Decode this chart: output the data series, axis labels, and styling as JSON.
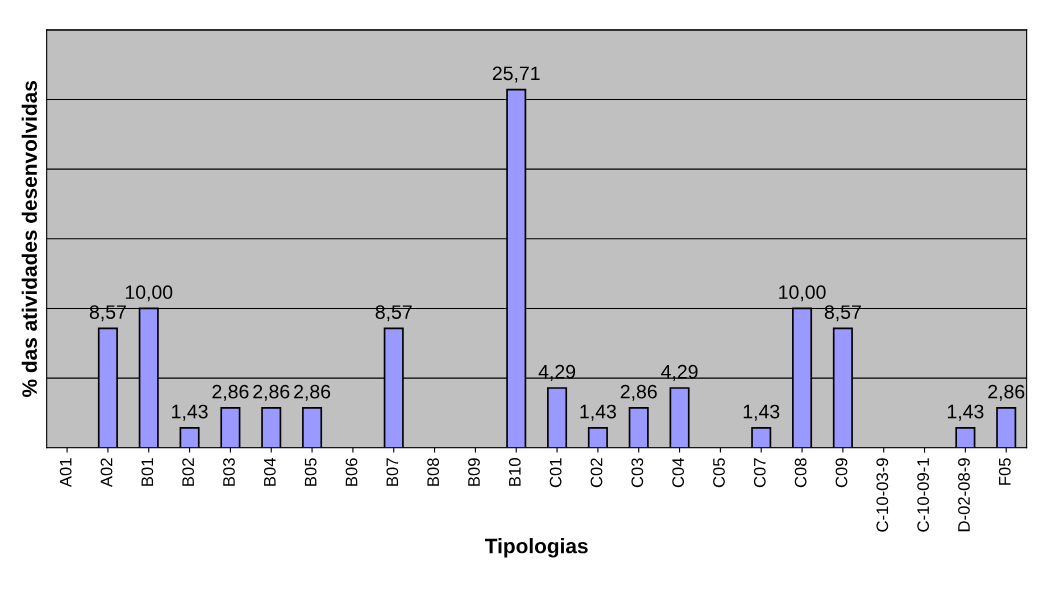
{
  "chart_data": {
    "type": "bar",
    "xlabel": "Tipologias",
    "ylabel": "% das atividades desenvolvidas",
    "categories": [
      "A01",
      "A02",
      "B01",
      "B02",
      "B03",
      "B04",
      "B05",
      "B06",
      "B07",
      "B08",
      "B09",
      "B10",
      "C01",
      "C02",
      "C03",
      "C04",
      "C05",
      "C07",
      "C08",
      "C09",
      "C-10-03-9",
      "C-10-09-1",
      "D-02-08-9",
      "F05"
    ],
    "values": [
      0,
      8.57,
      10.0,
      1.43,
      2.86,
      2.86,
      2.86,
      0,
      8.57,
      0,
      0,
      25.71,
      4.29,
      1.43,
      2.86,
      4.29,
      0,
      1.43,
      10.0,
      8.57,
      0,
      0,
      1.43,
      2.86
    ],
    "value_labels": [
      null,
      "8,57",
      "10,00",
      "1,43",
      "2,86",
      "2,86",
      "2,86",
      null,
      "8,57",
      null,
      null,
      "25,71",
      "4,29",
      "1,43",
      "2,86",
      "4,29",
      null,
      "1,43",
      "10,00",
      "8,57",
      null,
      null,
      "1,43",
      "2,86"
    ],
    "color": "#9999ff",
    "ylim": [
      0,
      30
    ],
    "yticks": [
      0,
      5,
      10,
      15,
      20,
      25,
      30
    ],
    "tick_labels": "x",
    "grid": "y",
    "legend": false
  }
}
